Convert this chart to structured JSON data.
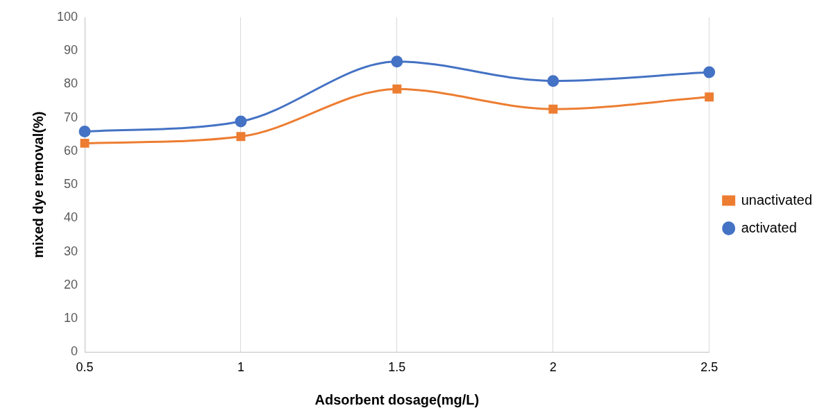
{
  "chart_data": {
    "type": "line",
    "xlabel": "Adsorbent dosage(mg/L)",
    "ylabel": "mixed dye removal(%)",
    "x": [
      0.5,
      1,
      1.5,
      2,
      2.5
    ],
    "series": [
      {
        "name": "unactivated",
        "color": "#ed7d31",
        "marker": "square",
        "values": [
          62.4,
          64.4,
          78.6,
          72.6,
          76.2
        ]
      },
      {
        "name": "activated",
        "color": "#4472c4",
        "marker": "circle",
        "values": [
          65.9,
          68.9,
          86.8,
          81,
          83.6
        ]
      }
    ],
    "xlim": [
      0.5,
      2.5
    ],
    "xticks": [
      0.5,
      1,
      1.5,
      2,
      2.5
    ],
    "ylim": [
      0,
      100
    ],
    "yticks": [
      0,
      10,
      20,
      30,
      40,
      50,
      60,
      70,
      80,
      90,
      100
    ],
    "grid": "x",
    "legend": "right"
  }
}
